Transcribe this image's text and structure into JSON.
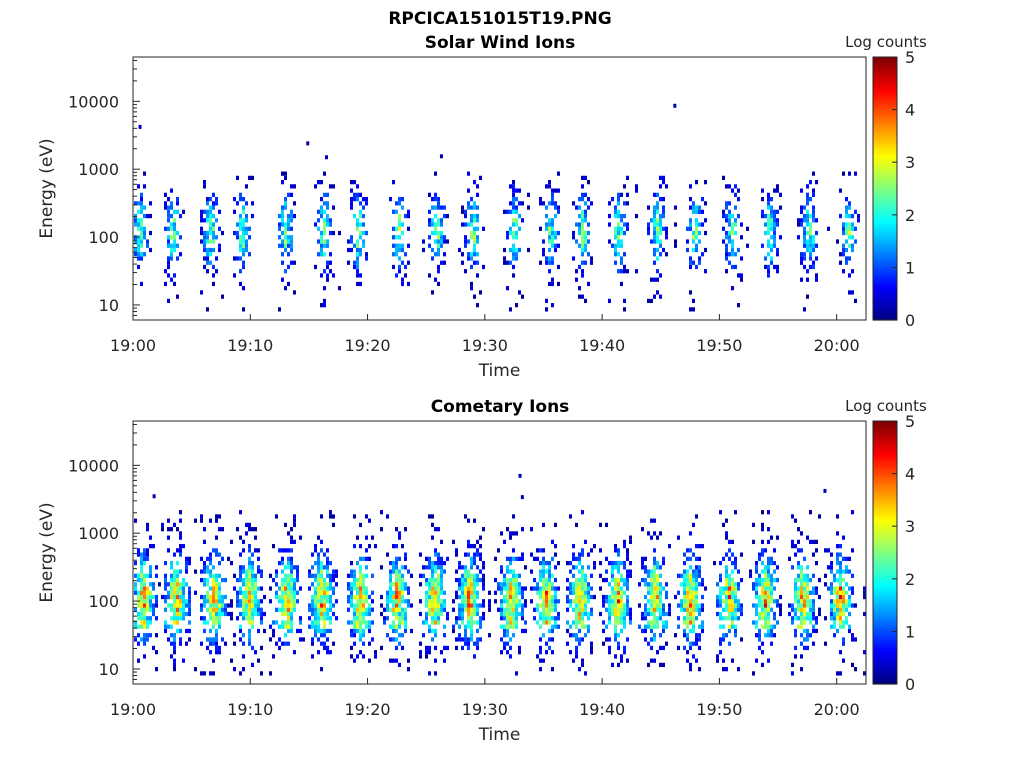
{
  "figure_title": "RPCICA151015T19.PNG",
  "chart_data": [
    {
      "type": "heatmap",
      "title": "Solar Wind Ions",
      "xlabel": "Time",
      "ylabel": "Energy (eV)",
      "x_ticks": [
        "19:00",
        "19:10",
        "19:20",
        "19:30",
        "19:40",
        "19:50",
        "20:00"
      ],
      "x_tick_minutes": [
        0,
        10,
        20,
        30,
        40,
        50,
        60
      ],
      "xlim_minutes": [
        0,
        62.5
      ],
      "y_scale": "log",
      "ylim": [
        6,
        45000
      ],
      "y_ticks": [
        "10",
        "100",
        "1000",
        "10000"
      ],
      "y_tick_values": [
        10,
        100,
        1000,
        10000
      ],
      "colorbar": {
        "label": "Log counts",
        "ticks": [
          "0",
          "1",
          "2",
          "3",
          "4",
          "5"
        ],
        "range": [
          0,
          5
        ],
        "colormap": "jet"
      },
      "bursts_minutes": [
        0.5,
        3.3,
        6.5,
        9.2,
        12.9,
        16.2,
        19.1,
        22.6,
        25.8,
        28.9,
        32.4,
        35.5,
        38.2,
        41.3,
        44.6,
        47.8,
        51.0,
        54.2,
        57.5,
        60.9
      ],
      "peak_level": 2.5,
      "outliers": [
        {
          "minute": 0.6,
          "energy": 4200
        },
        {
          "minute": 46.2,
          "energy": 8600
        },
        {
          "minute": 14.9,
          "energy": 2400
        },
        {
          "minute": 16.5,
          "energy": 1500
        },
        {
          "minute": 26.3,
          "energy": 1550
        }
      ]
    },
    {
      "type": "heatmap",
      "title": "Cometary Ions",
      "xlabel": "Time",
      "ylabel": "Energy (eV)",
      "x_ticks": [
        "19:00",
        "19:10",
        "19:20",
        "19:30",
        "19:40",
        "19:50",
        "20:00"
      ],
      "x_tick_minutes": [
        0,
        10,
        20,
        30,
        40,
        50,
        60
      ],
      "xlim_minutes": [
        0,
        62.5
      ],
      "y_scale": "log",
      "ylim": [
        6,
        45000
      ],
      "y_ticks": [
        "10",
        "100",
        "1000",
        "10000"
      ],
      "y_tick_values": [
        10,
        100,
        1000,
        10000
      ],
      "colorbar": {
        "label": "Log counts",
        "ticks": [
          "0",
          "1",
          "2",
          "3",
          "4",
          "5"
        ],
        "range": [
          0,
          5
        ],
        "colormap": "jet"
      },
      "bursts_minutes": [
        0.8,
        3.6,
        6.8,
        9.8,
        13.0,
        16.0,
        19.3,
        22.4,
        25.6,
        28.6,
        32.1,
        35.1,
        38.0,
        41.2,
        44.4,
        47.4,
        50.7,
        53.8,
        57.0,
        60.2
      ],
      "peak_level": 3.8,
      "outliers": [
        {
          "minute": 1.8,
          "energy": 3500
        },
        {
          "minute": 33.0,
          "energy": 7000
        },
        {
          "minute": 59.0,
          "energy": 4200
        },
        {
          "minute": 33.2,
          "energy": 3400
        }
      ]
    }
  ]
}
